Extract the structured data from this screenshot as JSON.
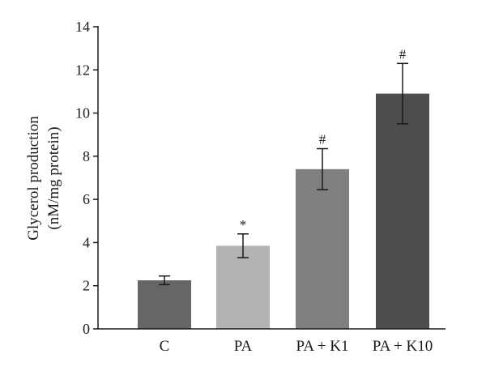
{
  "chart_data": {
    "type": "bar",
    "categories": [
      "C",
      "PA",
      "PA + K1",
      "PA + K10"
    ],
    "values": [
      2.25,
      3.85,
      7.4,
      10.9
    ],
    "errors": [
      0.2,
      0.55,
      0.95,
      1.4
    ],
    "significance": [
      "",
      "*",
      "#",
      "#"
    ],
    "bar_colors": [
      "#666666",
      "#b2b2b2",
      "#808080",
      "#4d4d4d"
    ],
    "ylabel_lines": [
      "Glycerol production",
      "(nM/mg protein)"
    ],
    "yticks": [
      "0",
      "2",
      "4",
      "6",
      "8",
      "10",
      "12",
      "14"
    ],
    "ylim": [
      0,
      14
    ],
    "grid": false
  }
}
